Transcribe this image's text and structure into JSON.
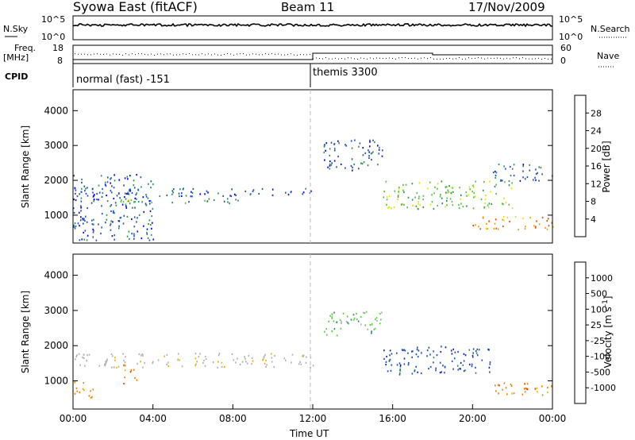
{
  "header": {
    "station": "Syowa East (fitACF)",
    "beam": "Beam 11",
    "date": "17/Nov/2009"
  },
  "noise_panel": {
    "left_label": "N.Sky",
    "right_label": "N.Search",
    "ytick_top": "10^5",
    "ytick_bottom": "10^0"
  },
  "freq_panel": {
    "left_label_line1": "Freq.",
    "left_label_line2": "[MHz]",
    "right_label": "Nave",
    "left_ticks": [
      "18",
      "8"
    ],
    "right_ticks": [
      "60",
      "0"
    ]
  },
  "cpid_panel": {
    "label": "CPID",
    "segments": [
      {
        "name": "normal (fast) -151",
        "start_hour": 0
      },
      {
        "name": "themis 3300",
        "start_hour": 12
      }
    ]
  },
  "colors": {
    "power": [
      "#0000ff",
      "#1f4fb4",
      "#2c8f5c",
      "#56c040",
      "#e6e600",
      "#f0a000",
      "#e05000",
      "#d40000"
    ],
    "velocity": [
      "#ff0000",
      "#f04000",
      "#f08000",
      "#f0b000",
      "#b0b0b0",
      "#b0b0b0",
      "#60d040",
      "#2c8f5c",
      "#1f4fb4",
      "#1020a0"
    ]
  },
  "chart_data": [
    {
      "type": "heatmap",
      "title": "Power",
      "ylabel": "Slant Range [km]",
      "xlim": [
        "00:00",
        "24:00"
      ],
      "ylim": [
        200,
        4600
      ],
      "yticks": [
        "1000",
        "2000",
        "3000",
        "4000"
      ],
      "colorbar": {
        "label": "Power [dB]",
        "ticks": [
          "4",
          "8",
          "12",
          "16",
          "20",
          "24",
          "28"
        ],
        "range": [
          0,
          32
        ]
      },
      "scatter_regions": [
        {
          "t0": 0.0,
          "t1": 12.0,
          "r0": 1550,
          "r1": 1800,
          "value": 7
        },
        {
          "t0": 1.5,
          "t1": 8.5,
          "r0": 1350,
          "r1": 1500,
          "value": 9
        },
        {
          "t0": 0.0,
          "t1": 4.0,
          "r0": 300,
          "r1": 2200,
          "value": 6
        },
        {
          "t0": 2.5,
          "t1": 3.2,
          "r0": 1100,
          "r1": 1500,
          "value": 14
        },
        {
          "t0": 12.5,
          "t1": 15.5,
          "r0": 2300,
          "r1": 3200,
          "value": 6
        },
        {
          "t0": 15.5,
          "t1": 22.0,
          "r0": 1200,
          "r1": 2000,
          "value": 15
        },
        {
          "t0": 20.0,
          "t1": 24.0,
          "r0": 600,
          "r1": 1000,
          "value": 20
        },
        {
          "t0": 21.0,
          "t1": 24.0,
          "r0": 2000,
          "r1": 2500,
          "value": 6
        }
      ]
    },
    {
      "type": "heatmap",
      "title": "Velocity",
      "ylabel": "Slant Range [km]",
      "xlabel": "Time UT",
      "xticks": [
        "00:00",
        "04:00",
        "08:00",
        "12:00",
        "16:00",
        "20:00",
        "00:00"
      ],
      "ylim": [
        200,
        4600
      ],
      "yticks": [
        "1000",
        "2000",
        "3000",
        "4000"
      ],
      "colorbar": {
        "label": "Velocity [m s^-1]",
        "ticks": [
          "1000",
          "500",
          "100",
          "25",
          "-25",
          "-100",
          "-500",
          "-1000"
        ]
      },
      "scatter_regions": [
        {
          "t0": 0.0,
          "t1": 12.0,
          "r0": 1400,
          "r1": 1800,
          "value": 0
        },
        {
          "t0": 0.0,
          "t1": 1.0,
          "r0": 500,
          "r1": 1000,
          "value": -400
        },
        {
          "t0": 2.5,
          "t1": 3.2,
          "r0": 900,
          "r1": 1500,
          "value": -300
        },
        {
          "t0": 12.5,
          "t1": 15.5,
          "r0": 2300,
          "r1": 3000,
          "value": 80
        },
        {
          "t0": 15.5,
          "t1": 21.0,
          "r0": 1200,
          "r1": 2000,
          "value": 800
        },
        {
          "t0": 21.0,
          "t1": 24.0,
          "r0": 600,
          "r1": 1000,
          "value": -400
        }
      ]
    }
  ]
}
